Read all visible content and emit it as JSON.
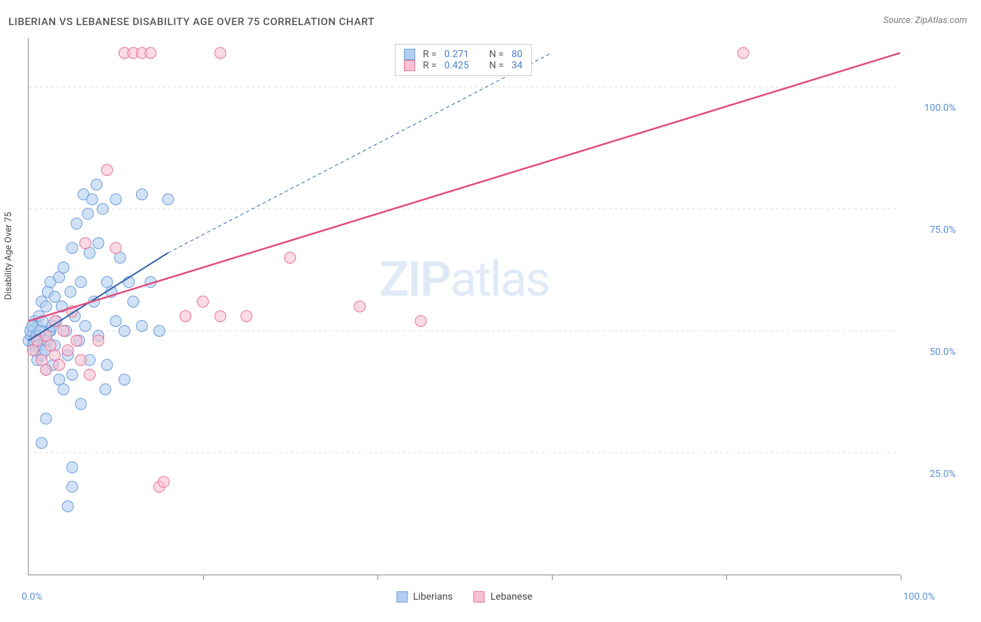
{
  "title": "LIBERIAN VS LEBANESE DISABILITY AGE OVER 75 CORRELATION CHART",
  "source": "Source: ZipAtlas.com",
  "y_axis_label": "Disability Age Over 75",
  "watermark_zip": "ZIP",
  "watermark_atlas": "atlas",
  "chart": {
    "type": "scatter",
    "xlim": [
      0,
      100
    ],
    "ylim": [
      0,
      110
    ],
    "x_ticks": [
      0,
      20,
      40,
      60,
      80,
      100
    ],
    "y_ticks": [
      25,
      50,
      75,
      100
    ],
    "y_tick_labels": [
      "25.0%",
      "50.0%",
      "75.0%",
      "100.0%"
    ],
    "x_tick_left": "0.0%",
    "x_tick_right": "100.0%",
    "background_color": "#ffffff",
    "grid_color": "#dddddd",
    "axis_color": "#888888",
    "marker_radius": 8,
    "marker_stroke_width": 1,
    "title_fontsize": 15,
    "label_fontsize": 13,
    "tick_fontsize": 14,
    "tick_color": "#5b8fd6"
  },
  "series": [
    {
      "name": "Liberians",
      "fill": "#b3cef0",
      "stroke": "#6a9bd8",
      "fill_opacity": 0.6,
      "R": "0.271",
      "N": "80",
      "trend": {
        "x1": 0,
        "y1": 48,
        "x2": 16,
        "y2": 66,
        "color": "#2d5fa8",
        "width": 2,
        "dash_ext": {
          "x2": 60,
          "y2": 107,
          "dash": "5,4"
        }
      },
      "points": [
        [
          0,
          48
        ],
        [
          0.3,
          49
        ],
        [
          0.5,
          47
        ],
        [
          0.5,
          50
        ],
        [
          0.7,
          52
        ],
        [
          0.8,
          46
        ],
        [
          1,
          51
        ],
        [
          1,
          44
        ],
        [
          1.2,
          53
        ],
        [
          1.2,
          49
        ],
        [
          1.5,
          56
        ],
        [
          1.5,
          45
        ],
        [
          1.8,
          48
        ],
        [
          2,
          55
        ],
        [
          2,
          42
        ],
        [
          2.2,
          58
        ],
        [
          2.5,
          50
        ],
        [
          2.5,
          60
        ],
        [
          2.8,
          43
        ],
        [
          3,
          57
        ],
        [
          3,
          47
        ],
        [
          3.2,
          52
        ],
        [
          3.5,
          40
        ],
        [
          3.5,
          61
        ],
        [
          3.8,
          55
        ],
        [
          4,
          38
        ],
        [
          4,
          63
        ],
        [
          4.3,
          50
        ],
        [
          4.5,
          45
        ],
        [
          4.8,
          58
        ],
        [
          5,
          67
        ],
        [
          5,
          41
        ],
        [
          5.3,
          53
        ],
        [
          5.5,
          72
        ],
        [
          5.8,
          48
        ],
        [
          6,
          35
        ],
        [
          6,
          60
        ],
        [
          6.3,
          78
        ],
        [
          6.5,
          51
        ],
        [
          6.8,
          74
        ],
        [
          7,
          44
        ],
        [
          7,
          66
        ],
        [
          7.3,
          77
        ],
        [
          7.5,
          56
        ],
        [
          7.8,
          80
        ],
        [
          8,
          49
        ],
        [
          8,
          68
        ],
        [
          8.5,
          75
        ],
        [
          8.8,
          38
        ],
        [
          9,
          60
        ],
        [
          9,
          43
        ],
        [
          9.5,
          58
        ],
        [
          10,
          52
        ],
        [
          10,
          77
        ],
        [
          10.5,
          65
        ],
        [
          11,
          40
        ],
        [
          11,
          50
        ],
        [
          11.5,
          60
        ],
        [
          12,
          56
        ],
        [
          13,
          51
        ],
        [
          13,
          78
        ],
        [
          14,
          60
        ],
        [
          15,
          50
        ],
        [
          16,
          77
        ],
        [
          1.5,
          27
        ],
        [
          2,
          32
        ],
        [
          4.5,
          14
        ],
        [
          5,
          22
        ],
        [
          5,
          18
        ],
        [
          0.2,
          50
        ],
        [
          0.4,
          51
        ],
        [
          0.6,
          48
        ],
        [
          0.9,
          49
        ],
        [
          1.1,
          47
        ],
        [
          1.3,
          50
        ],
        [
          1.6,
          52
        ],
        [
          1.9,
          46
        ],
        [
          2.1,
          48
        ],
        [
          2.4,
          50
        ],
        [
          2.7,
          51
        ]
      ]
    },
    {
      "name": "Lebanese",
      "fill": "#f6c2d2",
      "stroke": "#e76f98",
      "fill_opacity": 0.6,
      "R": "0.425",
      "N": "34",
      "trend": {
        "x1": 0,
        "y1": 52,
        "x2": 100,
        "y2": 107,
        "color": "#e14a7d",
        "width": 2.5
      },
      "points": [
        [
          0.5,
          46
        ],
        [
          1,
          48
        ],
        [
          1.5,
          44
        ],
        [
          2,
          49
        ],
        [
          2,
          42
        ],
        [
          2.5,
          47
        ],
        [
          3,
          45
        ],
        [
          3,
          52
        ],
        [
          3.5,
          43
        ],
        [
          4,
          50
        ],
        [
          4.5,
          46
        ],
        [
          5,
          54
        ],
        [
          5.5,
          48
        ],
        [
          6,
          44
        ],
        [
          6.5,
          68
        ],
        [
          7,
          41
        ],
        [
          8,
          48
        ],
        [
          9,
          83
        ],
        [
          10,
          67
        ],
        [
          11,
          107
        ],
        [
          12,
          107
        ],
        [
          13,
          107
        ],
        [
          14,
          107
        ],
        [
          15,
          18
        ],
        [
          15.5,
          19
        ],
        [
          18,
          53
        ],
        [
          20,
          56
        ],
        [
          22,
          53
        ],
        [
          22,
          107
        ],
        [
          25,
          53
        ],
        [
          30,
          65
        ],
        [
          38,
          55
        ],
        [
          45,
          52
        ],
        [
          82,
          107
        ]
      ]
    }
  ],
  "stats_legend": {
    "r_label": "R =",
    "n_label": "N ="
  },
  "bottom_legend": {
    "items": [
      "Liberians",
      "Lebanese"
    ]
  }
}
